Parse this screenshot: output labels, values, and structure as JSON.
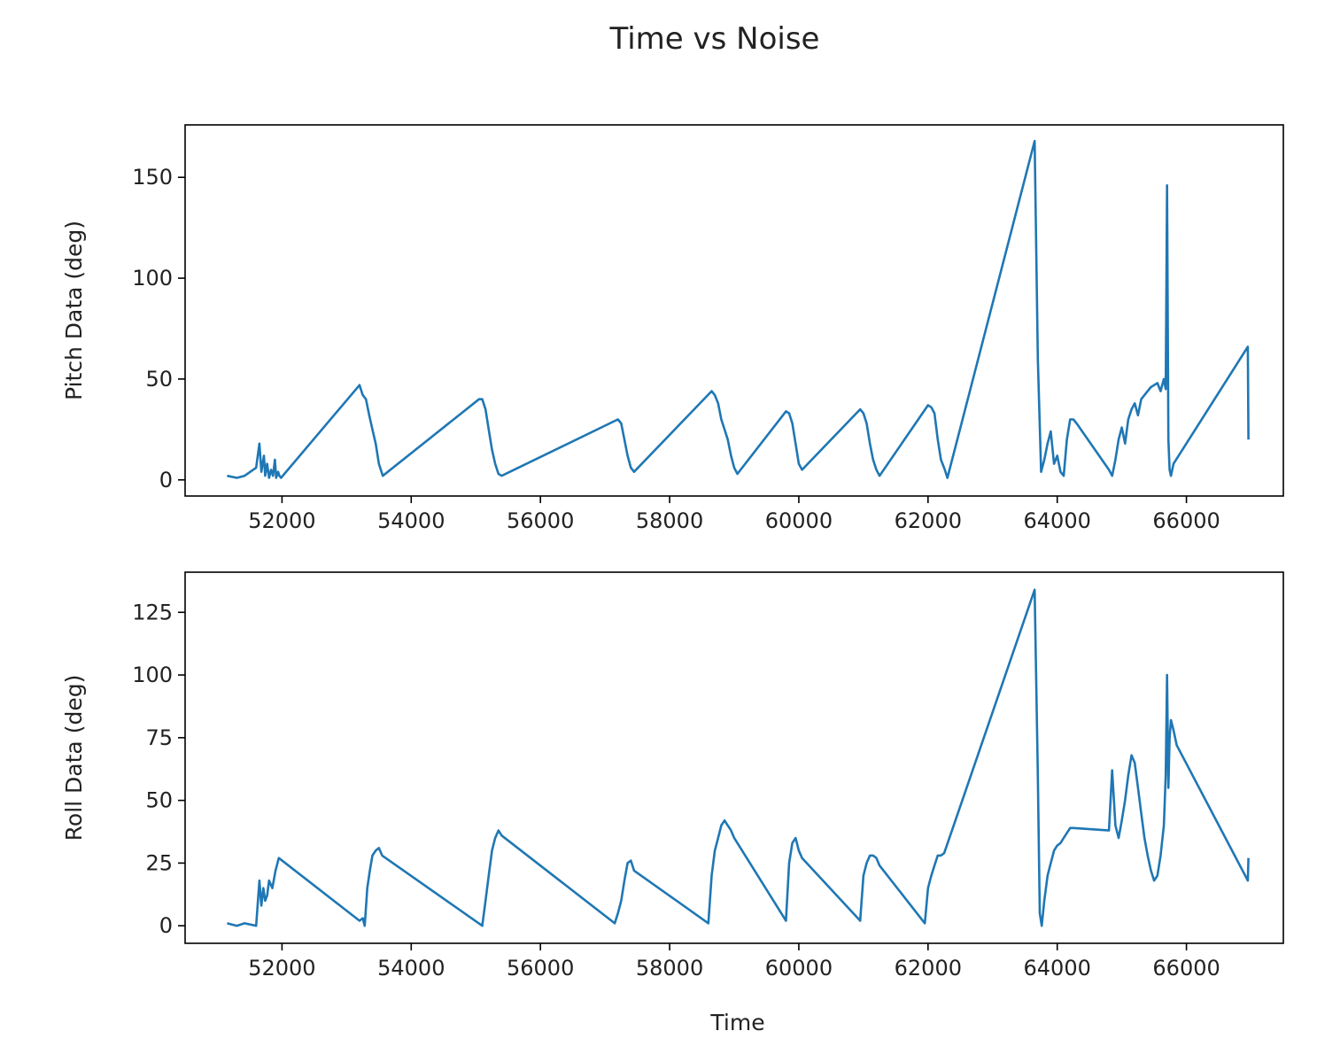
{
  "title": "Time vs Noise",
  "line_color": "#1f77b4",
  "chart_data": [
    {
      "type": "line",
      "title": "",
      "xlabel": "",
      "ylabel": "Pitch Data (deg)",
      "xlim": [
        50500,
        67500
      ],
      "ylim": [
        -8,
        176
      ],
      "xticks": [
        52000,
        54000,
        56000,
        58000,
        60000,
        62000,
        64000,
        66000
      ],
      "xtick_labels": [
        "52000",
        "54000",
        "56000",
        "58000",
        "60000",
        "62000",
        "64000",
        "66000"
      ],
      "yticks": [
        0,
        50,
        100,
        150
      ],
      "ytick_labels": [
        "0",
        "50",
        "100",
        "150"
      ],
      "grid": false,
      "series": [
        {
          "x": [
            51150,
            51300,
            51420,
            51600,
            51650,
            51680,
            51720,
            51740,
            51770,
            51800,
            51830,
            51860,
            51890,
            51910,
            51940,
            51960,
            51985,
            53200,
            53250,
            53300,
            53350,
            53400,
            53450,
            53500,
            53560,
            55050,
            55100,
            55150,
            55200,
            55250,
            55300,
            55350,
            55400,
            57200,
            57250,
            57300,
            57350,
            57400,
            57450,
            58650,
            58700,
            58750,
            58800,
            58850,
            58900,
            58950,
            59000,
            59050,
            59800,
            59850,
            59900,
            59950,
            60000,
            60050,
            60950,
            61000,
            61050,
            61100,
            61150,
            61200,
            61250,
            62000,
            62050,
            62100,
            62150,
            62200,
            62260,
            62300,
            63650,
            63700,
            63750,
            63800,
            63850,
            63900,
            63950,
            64000,
            64050,
            64100,
            64150,
            64200,
            64250,
            64300,
            64800,
            64850,
            64900,
            64950,
            65000,
            65050,
            65100,
            65150,
            65200,
            65250,
            65300,
            65350,
            65400,
            65450,
            65500,
            65550,
            65600,
            65650,
            65680,
            65700,
            65720,
            65740,
            65760,
            65800,
            66950,
            66960
          ],
          "y": [
            2,
            1,
            2,
            6,
            18,
            4,
            12,
            2,
            8,
            1,
            5,
            2,
            10,
            1,
            4,
            2,
            1,
            47,
            42,
            40,
            32,
            25,
            18,
            8,
            2,
            40,
            40,
            35,
            25,
            15,
            8,
            3,
            2,
            30,
            28,
            20,
            12,
            6,
            4,
            44,
            42,
            38,
            30,
            25,
            20,
            12,
            6,
            3,
            34,
            33,
            28,
            18,
            8,
            5,
            35,
            33,
            28,
            18,
            10,
            5,
            2,
            37,
            36,
            33,
            20,
            10,
            5,
            1,
            168,
            60,
            4,
            10,
            18,
            24,
            8,
            12,
            4,
            2,
            20,
            30,
            30,
            28,
            5,
            2,
            10,
            20,
            26,
            18,
            30,
            35,
            38,
            32,
            40,
            42,
            44,
            46,
            47,
            48,
            44,
            50,
            45,
            146,
            20,
            5,
            2,
            8,
            66,
            20
          ]
        }
      ]
    },
    {
      "type": "line",
      "title": "",
      "xlabel": "Time",
      "ylabel": "Roll Data (deg)",
      "xlim": [
        50500,
        67500
      ],
      "ylim": [
        -7,
        141
      ],
      "xticks": [
        52000,
        54000,
        56000,
        58000,
        60000,
        62000,
        64000,
        66000
      ],
      "xtick_labels": [
        "52000",
        "54000",
        "56000",
        "58000",
        "60000",
        "62000",
        "64000",
        "66000"
      ],
      "yticks": [
        0,
        25,
        50,
        75,
        100,
        125
      ],
      "ytick_labels": [
        "0",
        "25",
        "50",
        "75",
        "100",
        "125"
      ],
      "grid": false,
      "series": [
        {
          "x": [
            51150,
            51300,
            51420,
            51600,
            51650,
            51680,
            51710,
            51740,
            51770,
            51800,
            51850,
            51900,
            51950,
            53200,
            53250,
            53280,
            53320,
            53360,
            53400,
            53450,
            53500,
            53550,
            55100,
            55150,
            55200,
            55250,
            55300,
            55350,
            55400,
            57150,
            57200,
            57250,
            57300,
            57350,
            57400,
            57450,
            58600,
            58650,
            58700,
            58750,
            58800,
            58850,
            58900,
            58950,
            59000,
            59050,
            59800,
            59850,
            59900,
            59950,
            60000,
            60050,
            60950,
            61000,
            61050,
            61100,
            61150,
            61200,
            61250,
            61950,
            62000,
            62050,
            62100,
            62150,
            62200,
            62250,
            63650,
            63700,
            63730,
            63760,
            63800,
            63850,
            63900,
            63950,
            64000,
            64050,
            64100,
            64150,
            64200,
            64250,
            64800,
            64850,
            64900,
            64950,
            65000,
            65050,
            65100,
            65150,
            65200,
            65250,
            65300,
            65350,
            65400,
            65450,
            65500,
            65550,
            65600,
            65650,
            65680,
            65700,
            65720,
            65740,
            65760,
            65800,
            65850,
            66950,
            66960
          ],
          "y": [
            1,
            0,
            1,
            0,
            18,
            8,
            15,
            10,
            12,
            18,
            15,
            22,
            27,
            2,
            3,
            0,
            15,
            22,
            28,
            30,
            31,
            28,
            0,
            10,
            20,
            30,
            35,
            38,
            36,
            1,
            5,
            10,
            18,
            25,
            26,
            22,
            1,
            20,
            30,
            35,
            40,
            42,
            40,
            38,
            35,
            33,
            2,
            25,
            33,
            35,
            30,
            27,
            2,
            20,
            25,
            28,
            28,
            27,
            24,
            1,
            15,
            20,
            24,
            28,
            28,
            29,
            134,
            60,
            5,
            0,
            10,
            20,
            25,
            30,
            32,
            33,
            35,
            37,
            39,
            39,
            38,
            62,
            40,
            35,
            42,
            50,
            60,
            68,
            65,
            55,
            45,
            35,
            28,
            22,
            18,
            20,
            28,
            40,
            60,
            100,
            55,
            75,
            82,
            78,
            72,
            18,
            27
          ]
        }
      ]
    }
  ]
}
